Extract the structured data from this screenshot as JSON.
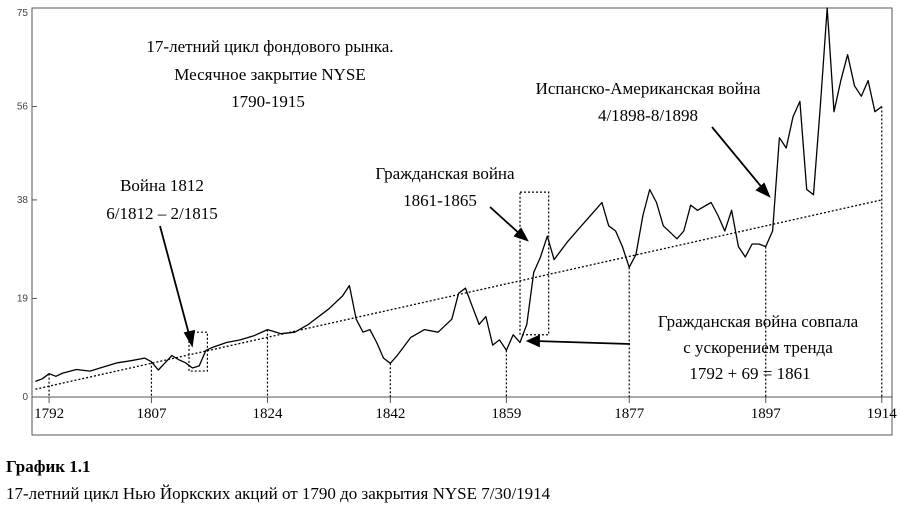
{
  "chart_data": {
    "type": "line",
    "title_lines": [
      "17-летний цикл фондового рынка.",
      "Месячное закрытие NYSE",
      "1790-1915"
    ],
    "x_ticks": [
      "1792",
      "1807",
      "1824",
      "1842",
      "1859",
      "1877",
      "1897",
      "1914"
    ],
    "y_ticks": [
      "0",
      "19",
      "38",
      "56",
      "75"
    ],
    "ylim": [
      0,
      75
    ],
    "xlim": [
      1789.5,
      1915.5
    ],
    "series": [
      {
        "x": [
          1790,
          1791,
          1792,
          1793,
          1794,
          1796,
          1798,
          1800,
          1802,
          1804,
          1806,
          1807,
          1808,
          1809,
          1810,
          1811,
          1812,
          1813,
          1814,
          1815,
          1816,
          1818,
          1820,
          1822,
          1824,
          1826,
          1828,
          1830,
          1833,
          1835,
          1836,
          1837,
          1838,
          1839,
          1840,
          1841,
          1842,
          1843,
          1845,
          1847,
          1849,
          1851,
          1852,
          1853,
          1854,
          1855,
          1856,
          1857,
          1858,
          1859,
          1860,
          1861,
          1862,
          1863,
          1864,
          1865,
          1866,
          1868,
          1870,
          1872,
          1873,
          1874,
          1875,
          1876,
          1877,
          1878,
          1879,
          1880,
          1881,
          1882,
          1884,
          1885,
          1886,
          1887,
          1889,
          1890,
          1891,
          1892,
          1893,
          1894,
          1895,
          1896,
          1897,
          1898,
          1899,
          1900,
          1901,
          1902,
          1903,
          1904,
          1905,
          1906,
          1907,
          1908,
          1909,
          1910,
          1911,
          1912,
          1913,
          1914
        ],
        "y": [
          3.0,
          3.5,
          4.5,
          4.0,
          4.6,
          5.3,
          5.0,
          5.8,
          6.6,
          7.0,
          7.5,
          6.8,
          5.2,
          6.6,
          8.0,
          7.2,
          6.6,
          5.6,
          6.0,
          9.0,
          9.6,
          10.5,
          11.0,
          11.8,
          13.0,
          12.2,
          12.5,
          14.0,
          17.0,
          19.5,
          21.5,
          15.0,
          12.5,
          13.0,
          10.5,
          7.5,
          6.5,
          8.0,
          11.5,
          13.0,
          12.5,
          15.0,
          20.0,
          21.0,
          17.5,
          14.0,
          15.5,
          10.0,
          11.0,
          9.0,
          12.0,
          10.5,
          14.0,
          24.0,
          27.0,
          31.0,
          26.5,
          30.0,
          33.0,
          36.0,
          37.5,
          33.0,
          32.0,
          29.0,
          25.0,
          27.5,
          35.0,
          40.0,
          37.5,
          33.0,
          30.5,
          32.0,
          37.0,
          36.0,
          37.5,
          35.0,
          32.0,
          36.0,
          29.0,
          27.0,
          29.5,
          29.5,
          29.0,
          32.0,
          50.0,
          48.0,
          54.0,
          57.0,
          40.0,
          39.0,
          56.0,
          75.0,
          55.0,
          61.0,
          66.0,
          60.0,
          58.0,
          61.0,
          55.0,
          56.0
        ]
      }
    ],
    "trendline": {
      "x": [
        1790,
        1914
      ],
      "y": [
        1.5,
        38.0
      ]
    },
    "highlight_boxes": [
      {
        "x0": 1812.5,
        "x1": 1815.2,
        "y0": 5.0,
        "y1": 12.5
      },
      {
        "x0": 1861.0,
        "x1": 1865.2,
        "y0": 12.0,
        "y1": 39.5
      }
    ],
    "vertical_markers": [
      1792,
      1807,
      1824,
      1842,
      1859,
      1877,
      1897,
      1914
    ],
    "annotations": [
      {
        "lines": [
          "Война 1812",
          "6/1812 – 2/1815"
        ]
      },
      {
        "lines": [
          "Гражданская война",
          "1861-1865"
        ]
      },
      {
        "lines": [
          "Испанско-Американская война",
          "4/1898-8/1898"
        ]
      },
      {
        "lines": [
          "Гражданская война совпала",
          "с ускорением тренда",
          "1792 + 69 = 1861"
        ]
      }
    ]
  },
  "caption": {
    "title": "График 1.1",
    "text": "17-летний цикл Нью Йоркских акций от 1790 до закрытия NYSE 7/30/1914"
  }
}
